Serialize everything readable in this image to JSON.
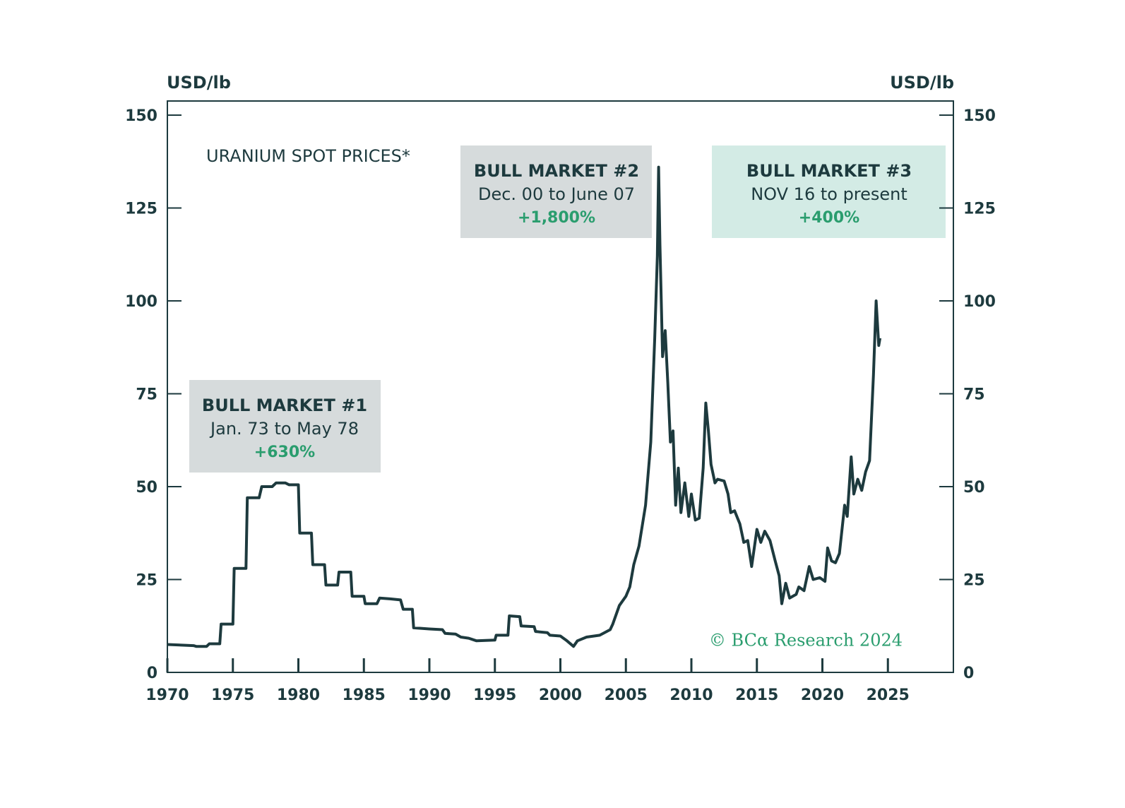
{
  "chart_data": {
    "type": "line",
    "title": "URANIUM SPOT PRICES*",
    "y_label": "USD/lb",
    "y2_label": "USD/lb",
    "x": [
      1970,
      1972,
      1972.2,
      1973,
      1973.2,
      1974,
      1974.1,
      1975,
      1975.1,
      1976,
      1976.1,
      1977,
      1977.2,
      1978,
      1978.3,
      1979,
      1979.3,
      1980,
      1980.1,
      1981,
      1981.1,
      1982,
      1982.1,
      1983,
      1983.1,
      1984,
      1984.1,
      1985,
      1985.1,
      1986,
      1986.2,
      1987,
      1987.8,
      1988,
      1988.7,
      1988.8,
      1990,
      1991,
      1991.2,
      1992,
      1992.4,
      1993,
      1993.6,
      1995,
      1995.1,
      1996,
      1996.1,
      1996.9,
      1997,
      1998,
      1998.1,
      1999,
      1999.2,
      2000,
      2000.5,
      2001,
      2001.3,
      2002,
      2003,
      2003.8,
      2004,
      2004.5,
      2005,
      2005.3,
      2005.6,
      2006,
      2006.5,
      2006.9,
      2007.2,
      2007.4,
      2007.5,
      2007.6,
      2007.8,
      2008,
      2008.2,
      2008.4,
      2008.6,
      2008.8,
      2009,
      2009.2,
      2009.5,
      2009.8,
      2010,
      2010.3,
      2010.6,
      2010.9,
      2011.1,
      2011.3,
      2011.5,
      2011.8,
      2012,
      2012.5,
      2012.8,
      2013,
      2013.3,
      2013.7,
      2014,
      2014.3,
      2014.6,
      2015,
      2015.3,
      2015.6,
      2016,
      2016.4,
      2016.7,
      2016.9,
      2017.2,
      2017.5,
      2018,
      2018.2,
      2018.6,
      2019,
      2019.3,
      2019.8,
      2020.2,
      2020.4,
      2020.7,
      2021,
      2021.3,
      2021.7,
      2021.9,
      2022.2,
      2022.4,
      2022.7,
      2023,
      2023.3,
      2023.6,
      2023.9,
      2024.1,
      2024.3,
      2024.4
    ],
    "series": [
      {
        "color": "#1d3a3e",
        "values": [
          7.5,
          7.2,
          7,
          7,
          7.7,
          7.7,
          13,
          13,
          28,
          28,
          47,
          47,
          50,
          50,
          51,
          51,
          50.5,
          50.5,
          37.5,
          37.5,
          29,
          29,
          23.5,
          23.5,
          27,
          27,
          20.5,
          20.5,
          18.5,
          18.5,
          20,
          19.8,
          19.5,
          17,
          17,
          12,
          11.7,
          11.5,
          10.5,
          10.3,
          9.5,
          9.2,
          8.5,
          8.7,
          10,
          10,
          15.2,
          15,
          12.5,
          12.3,
          11,
          10.7,
          10,
          9.8,
          8.5,
          7,
          8.5,
          9.5,
          10,
          11.5,
          13,
          18,
          20.5,
          23,
          29,
          34,
          45,
          62,
          90,
          112,
          136,
          115,
          85,
          92,
          78,
          62,
          65,
          45,
          55,
          43,
          51,
          42,
          48,
          41,
          41.5,
          55,
          72.5,
          65,
          56,
          51,
          52,
          51.5,
          48,
          43,
          43.5,
          40,
          35,
          35.5,
          28.5,
          38.5,
          35,
          38,
          35.5,
          30,
          26,
          18.5,
          24,
          20,
          21,
          23,
          22,
          28.5,
          25,
          25.5,
          24.5,
          33.5,
          30,
          29.5,
          32,
          45,
          42,
          58,
          48,
          52,
          49,
          54,
          57,
          80,
          100,
          88,
          90
        ]
      }
    ],
    "xlim": [
      1970,
      2030
    ],
    "xticks": [
      1970,
      1975,
      1980,
      1985,
      1990,
      1995,
      2000,
      2005,
      2010,
      2015,
      2020,
      2025
    ],
    "ylim": [
      0,
      153.8
    ],
    "yticks": [
      0,
      25,
      50,
      75,
      100,
      125,
      150
    ],
    "y2lim": [
      0,
      153.8
    ],
    "y2ticks": [
      0,
      25,
      50,
      75,
      100,
      125,
      150
    ],
    "annotations": [
      {
        "title": "BULL MARKET #1",
        "subtitle": "Jan. 73 to May 78",
        "change": "+630%"
      },
      {
        "title": "BULL MARKET #2",
        "subtitle": "Dec. 00 to June 07",
        "change": "+1,800%"
      },
      {
        "title": "BULL MARKET #3",
        "subtitle": "NOV 16 to present",
        "change": "+400%"
      }
    ],
    "source": "© BCα Research 2024"
  }
}
